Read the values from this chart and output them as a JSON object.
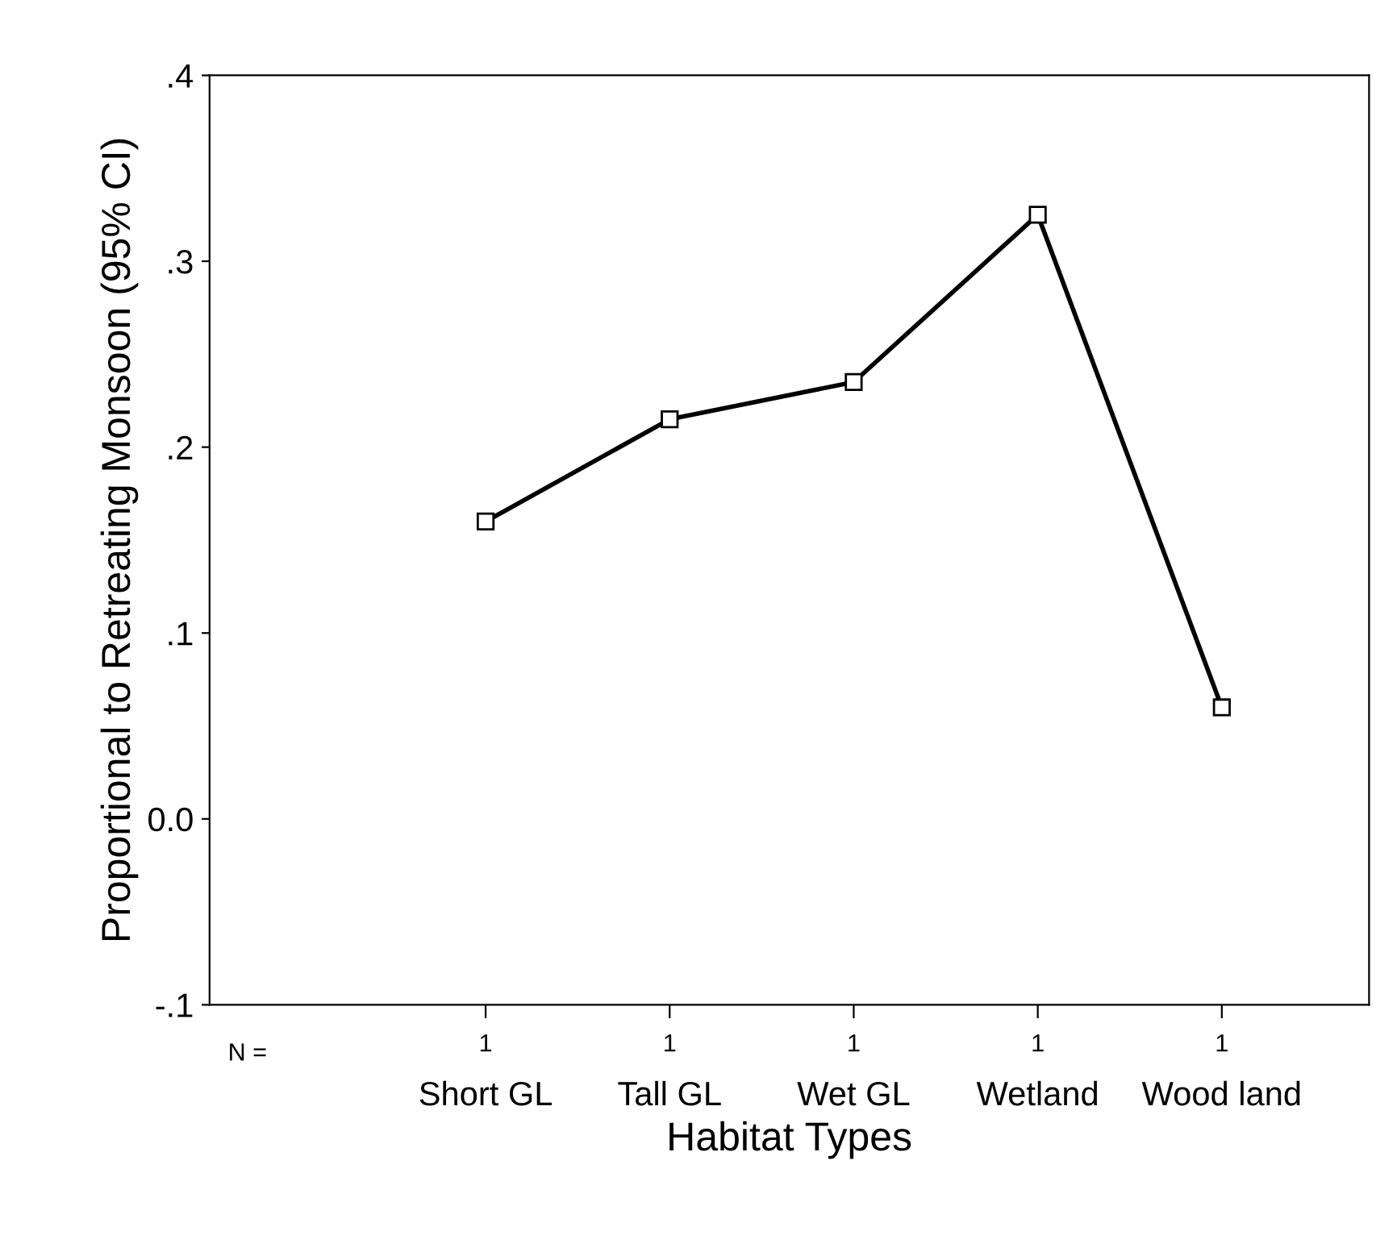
{
  "chart_data": {
    "type": "line",
    "xlabel": "Habitat Types",
    "ylabel": "Proportional to Retreating Monsoon (95% CI)",
    "categories": [
      "Short GL",
      "Tall GL",
      "Wet GL",
      "Wetland",
      "Wood land"
    ],
    "series": [
      {
        "color": "#000000",
        "values": [
          0.16,
          0.215,
          0.235,
          0.325,
          0.06
        ]
      }
    ],
    "ylim": [
      -0.1,
      0.4
    ],
    "yticks": [
      {
        "value": -0.1,
        "label": "-.1"
      },
      {
        "value": 0,
        "label": "0.0"
      },
      {
        "value": 0.1,
        "label": ".1"
      },
      {
        "value": 0.2,
        "label": ".2"
      },
      {
        "value": 0.3,
        "label": ".3"
      },
      {
        "value": 0.4,
        "label": ".4"
      }
    ],
    "marker": "square",
    "line_style": "solid",
    "grid": false,
    "legend": false,
    "annotations": [
      "N =",
      "1",
      "1",
      "1",
      "1",
      "1"
    ]
  }
}
